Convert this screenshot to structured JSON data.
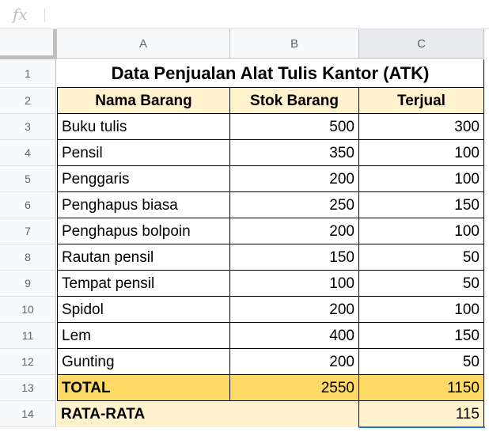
{
  "formula_bar": {
    "icon": "fx",
    "value": ""
  },
  "columns": [
    "A",
    "B",
    "C"
  ],
  "rows": [
    "1",
    "2",
    "3",
    "4",
    "5",
    "6",
    "7",
    "8",
    "9",
    "10",
    "11",
    "12",
    "13",
    "14"
  ],
  "title": "Data Penjualan Alat Tulis Kantor (ATK)",
  "headers": [
    "Nama Barang",
    "Stok Barang",
    "Terjual"
  ],
  "items": [
    {
      "name": "Buku tulis",
      "stock": "500",
      "sold": "300"
    },
    {
      "name": "Pensil",
      "stock": "350",
      "sold": "100"
    },
    {
      "name": "Penggaris",
      "stock": "200",
      "sold": "100"
    },
    {
      "name": "Penghapus biasa",
      "stock": "250",
      "sold": "150"
    },
    {
      "name": "Penghapus bolpoin",
      "stock": "200",
      "sold": "100"
    },
    {
      "name": "Rautan pensil",
      "stock": "150",
      "sold": "50"
    },
    {
      "name": "Tempat pensil",
      "stock": "100",
      "sold": "50"
    },
    {
      "name": "Spidol",
      "stock": "200",
      "sold": "100"
    },
    {
      "name": "Lem",
      "stock": "400",
      "sold": "150"
    },
    {
      "name": "Gunting",
      "stock": "200",
      "sold": "50"
    }
  ],
  "total": {
    "label": "TOTAL",
    "stock": "2550",
    "sold": "1150"
  },
  "average": {
    "label": "RATA-RATA",
    "value": "115"
  },
  "colors": {
    "header_fill": "#fff2cc",
    "total_fill": "#ffd966",
    "selection": "#1a73e8"
  }
}
